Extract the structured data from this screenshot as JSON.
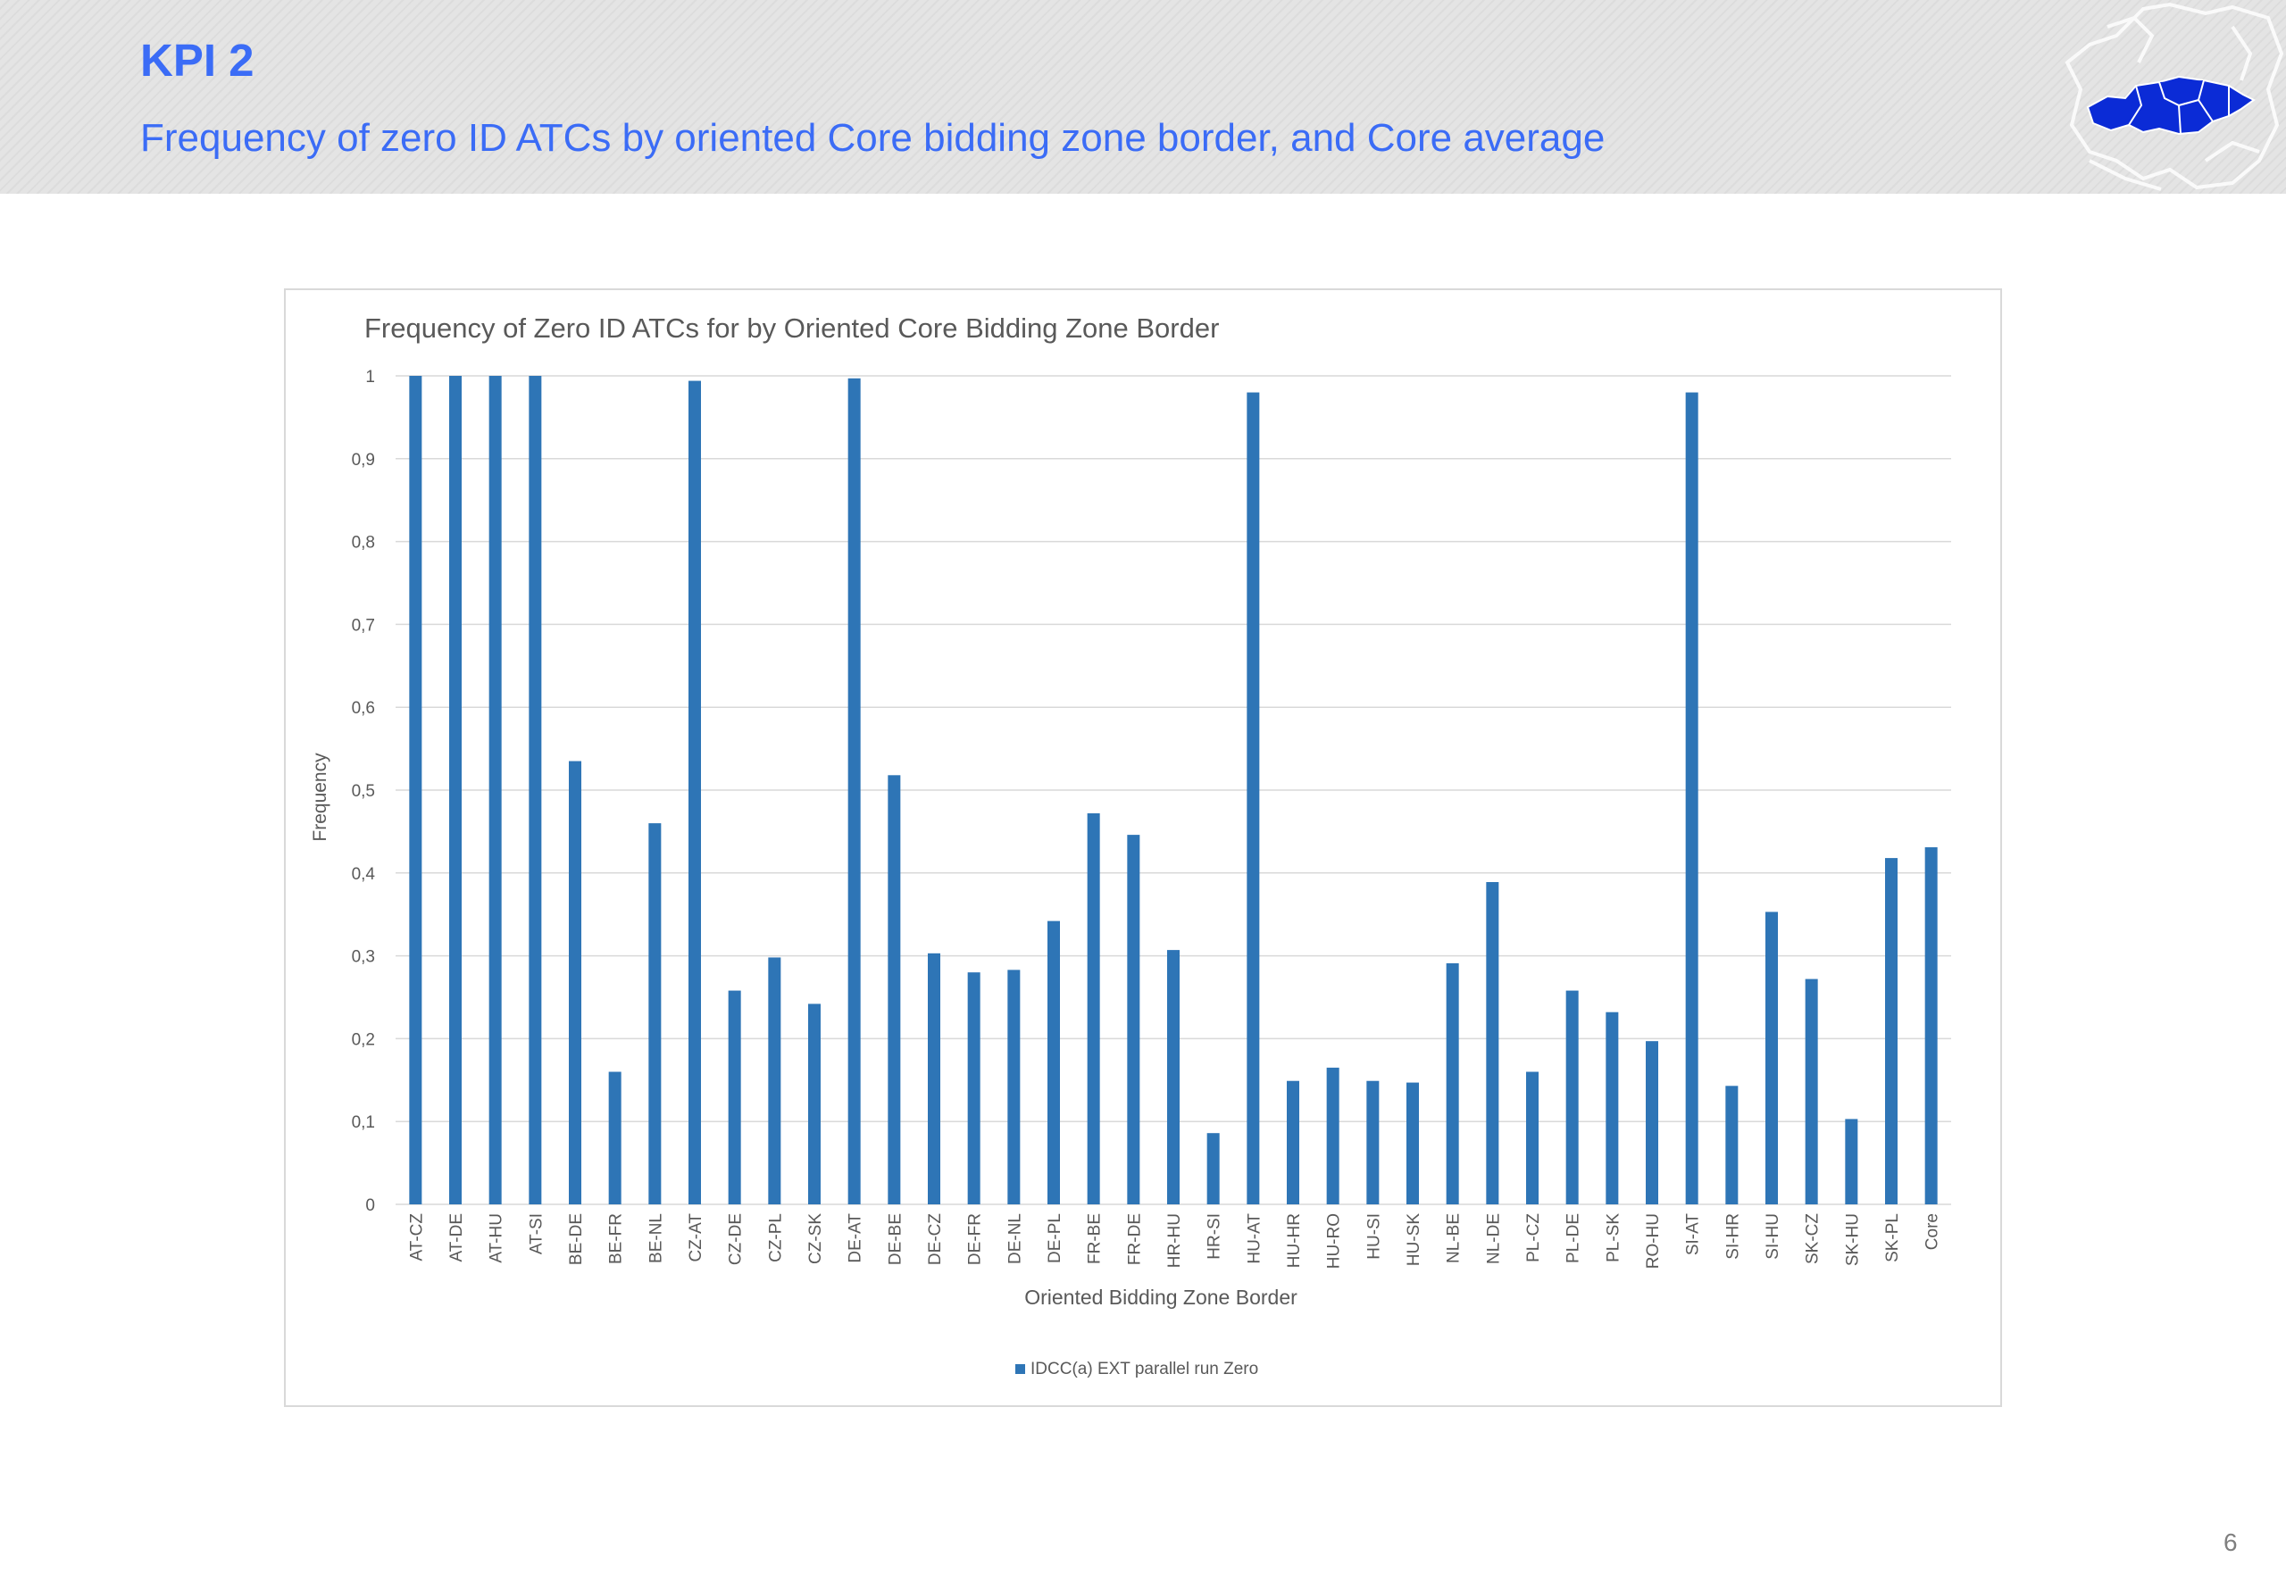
{
  "header": {
    "kpi_label": "KPI 2",
    "subtitle": "Frequency of zero ID ATCs by oriented Core bidding zone border, and Core average"
  },
  "icons": {
    "logo": "core-region-map-icon"
  },
  "page_number": "6",
  "colors": {
    "accent": "#3b6cf6",
    "bar": "#2e75b6"
  },
  "chart_data": {
    "type": "bar",
    "title": "Frequency of Zero ID ATCs for by Oriented Core Bidding Zone Border",
    "xlabel": "Oriented Bidding Zone Border",
    "ylabel": "Frequency",
    "ylim": [
      0,
      1
    ],
    "yticks": [
      "0",
      "0,1",
      "0,2",
      "0,3",
      "0,4",
      "0,5",
      "0,6",
      "0,7",
      "0,8",
      "0,9",
      "1"
    ],
    "grid": true,
    "legend_position": "bottom",
    "categories": [
      "AT-CZ",
      "AT-DE",
      "AT-HU",
      "AT-SI",
      "BE-DE",
      "BE-FR",
      "BE-NL",
      "CZ-AT",
      "CZ-DE",
      "CZ-PL",
      "CZ-SK",
      "DE-AT",
      "DE-BE",
      "DE-CZ",
      "DE-FR",
      "DE-NL",
      "DE-PL",
      "FR-BE",
      "FR-DE",
      "HR-HU",
      "HR-SI",
      "HU-AT",
      "HU-HR",
      "HU-RO",
      "HU-SI",
      "HU-SK",
      "NL-BE",
      "NL-DE",
      "PL-CZ",
      "PL-DE",
      "PL-SK",
      "RO-HU",
      "SI-AT",
      "SI-HR",
      "SI-HU",
      "SK-CZ",
      "SK-HU",
      "SK-PL",
      "Core"
    ],
    "series": [
      {
        "name": "IDCC(a) EXT parallel run Zero",
        "values": [
          1.0,
          1.0,
          1.0,
          1.0,
          0.535,
          0.16,
          0.46,
          0.994,
          0.258,
          0.298,
          0.242,
          0.997,
          0.518,
          0.303,
          0.28,
          0.283,
          0.342,
          0.472,
          0.446,
          0.307,
          0.086,
          0.98,
          0.149,
          0.165,
          0.149,
          0.147,
          0.291,
          0.389,
          0.16,
          0.258,
          0.232,
          0.197,
          0.98,
          0.143,
          0.353,
          0.272,
          0.103,
          0.418,
          0.431
        ]
      }
    ]
  }
}
